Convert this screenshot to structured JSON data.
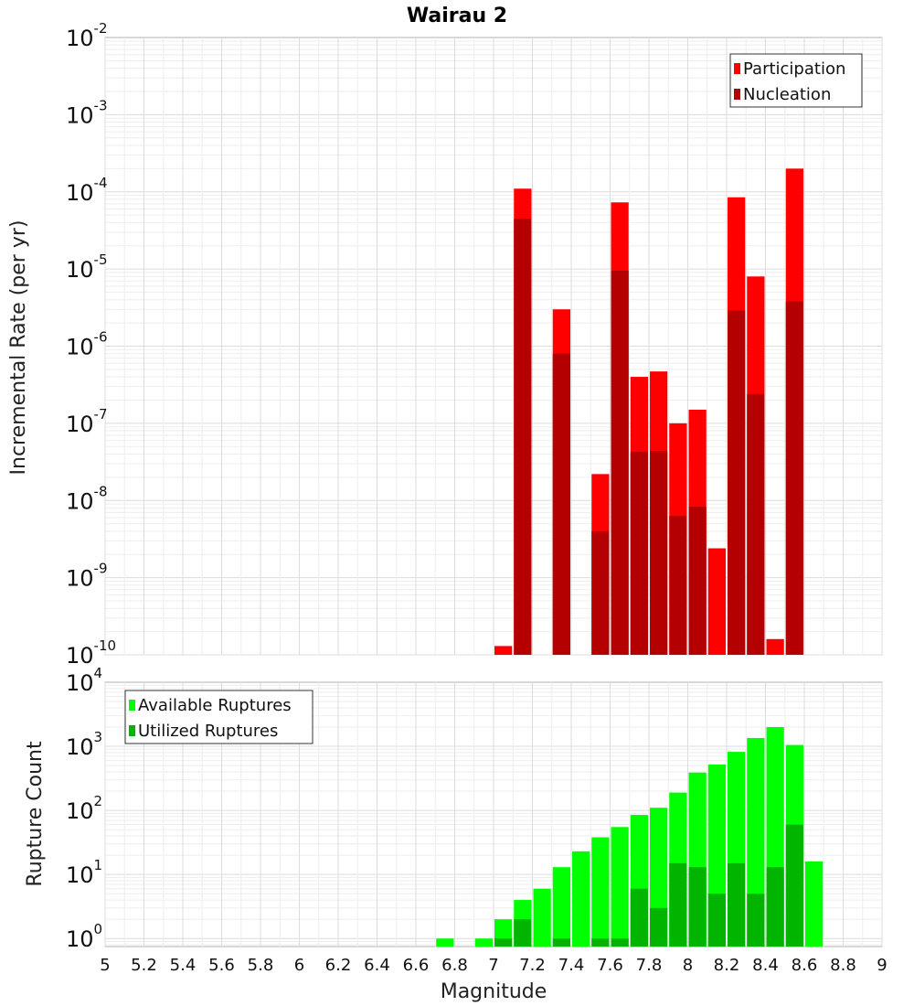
{
  "chart_data": [
    {
      "type": "bar",
      "title": "Wairau 2",
      "xlabel": "Magnitude",
      "ylabel": "Incremental Rate (per yr)",
      "yscale": "log",
      "ylim": [
        1e-10,
        0.01
      ],
      "xlim": [
        5,
        9
      ],
      "grid": true,
      "legend_position": "top-right",
      "bin_width": 0.1,
      "x_ticks": [
        "5",
        "5.2",
        "5.4",
        "5.6",
        "5.8",
        "6",
        "6.2",
        "6.4",
        "6.6",
        "6.8",
        "7",
        "7.2",
        "7.4",
        "7.6",
        "7.8",
        "8",
        "8.2",
        "8.4",
        "8.6",
        "8.8",
        "9"
      ],
      "y_ticks": [
        {
          "base": "10",
          "exp": "-10"
        },
        {
          "base": "10",
          "exp": "-9"
        },
        {
          "base": "10",
          "exp": "-8"
        },
        {
          "base": "10",
          "exp": "-7"
        },
        {
          "base": "10",
          "exp": "-6"
        },
        {
          "base": "10",
          "exp": "-5"
        },
        {
          "base": "10",
          "exp": "-4"
        },
        {
          "base": "10",
          "exp": "-3"
        },
        {
          "base": "10",
          "exp": "-2"
        }
      ],
      "series": [
        {
          "name": "Participation",
          "color": "#ff0000",
          "x": [
            7.05,
            7.15,
            7.35,
            7.55,
            7.65,
            7.75,
            7.85,
            7.95,
            8.05,
            8.15,
            8.25,
            8.35,
            8.45,
            8.55
          ],
          "values": [
            1.3e-10,
            0.00011,
            3e-06,
            2.2e-08,
            7.3e-05,
            4e-07,
            4.7e-07,
            1e-07,
            1.5e-07,
            2.4e-09,
            8.5e-05,
            8e-06,
            1.6e-10,
            0.0002
          ]
        },
        {
          "name": "Nucleation",
          "color": "#b40000",
          "x": [
            7.15,
            7.35,
            7.55,
            7.65,
            7.75,
            7.85,
            7.95,
            8.05,
            8.25,
            8.35,
            8.55
          ],
          "values": [
            4.5e-05,
            8e-07,
            4e-09,
            9.5e-06,
            4.3e-08,
            4.4e-08,
            6.3e-09,
            8.3e-09,
            2.9e-06,
            2.4e-07,
            3.8e-06
          ]
        }
      ]
    },
    {
      "type": "bar",
      "title": "",
      "xlabel": "Magnitude",
      "ylabel": "Rupture Count",
      "yscale": "log",
      "ylim": [
        0.75,
        10000
      ],
      "xlim": [
        5,
        9
      ],
      "grid": true,
      "legend_position": "top-left",
      "bin_width": 0.1,
      "y_ticks": [
        {
          "base": "10",
          "exp": "0"
        },
        {
          "base": "10",
          "exp": "1"
        },
        {
          "base": "10",
          "exp": "2"
        },
        {
          "base": "10",
          "exp": "3"
        },
        {
          "base": "10",
          "exp": "4"
        }
      ],
      "series": [
        {
          "name": "Available Ruptures",
          "color": "#00ff00",
          "x": [
            6.75,
            6.95,
            7.05,
            7.15,
            7.25,
            7.35,
            7.45,
            7.55,
            7.65,
            7.75,
            7.85,
            7.95,
            8.05,
            8.15,
            8.25,
            8.35,
            8.45,
            8.55,
            8.65
          ],
          "values": [
            1,
            1,
            2,
            4,
            6,
            13,
            23,
            38,
            55,
            85,
            110,
            190,
            390,
            520,
            820,
            1350,
            2000,
            1050,
            16
          ]
        },
        {
          "name": "Utilized Ruptures",
          "color": "#00b400",
          "x": [
            7.05,
            7.15,
            7.35,
            7.55,
            7.65,
            7.75,
            7.85,
            7.95,
            8.05,
            8.15,
            8.25,
            8.35,
            8.45,
            8.55
          ],
          "values": [
            1,
            2,
            1,
            1,
            1,
            6,
            3,
            15,
            13,
            5,
            15,
            5,
            13,
            60
          ]
        }
      ]
    }
  ]
}
